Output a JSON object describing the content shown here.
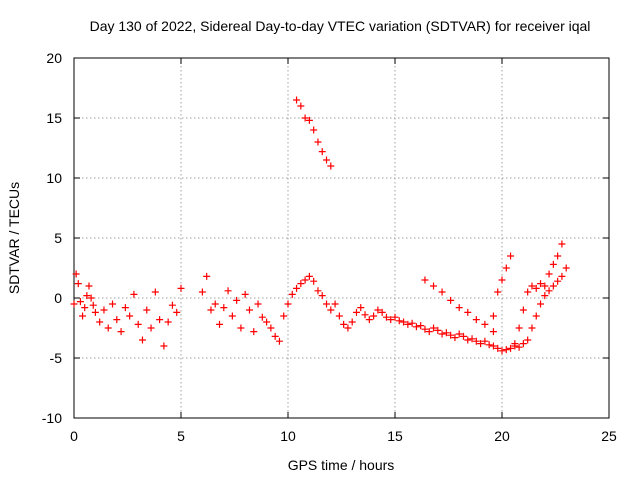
{
  "chart_data": {
    "type": "scatter",
    "title": "Day 130 of 2022, Sidereal Day-to-day VTEC variation (SDTVAR) for receiver iqal",
    "xlabel": "GPS time / hours",
    "ylabel": "SDTVAR / TECUs",
    "xlim": [
      0,
      25
    ],
    "ylim": [
      -10,
      20
    ],
    "xticks": [
      0,
      5,
      10,
      15,
      20,
      25
    ],
    "yticks": [
      -10,
      -5,
      0,
      5,
      10,
      15,
      20
    ],
    "grid": true,
    "marker": "+",
    "color": "#ff0000",
    "series": [
      {
        "name": "SDTVAR",
        "x": [
          0.0,
          0.1,
          0.2,
          0.3,
          0.4,
          0.5,
          0.6,
          0.7,
          0.8,
          0.9,
          1.0,
          1.2,
          1.4,
          1.6,
          1.8,
          2.0,
          2.2,
          2.4,
          2.6,
          2.8,
          3.0,
          3.2,
          3.4,
          3.6,
          3.8,
          4.0,
          4.2,
          4.4,
          4.6,
          4.8,
          5.0,
          6.0,
          6.2,
          6.4,
          6.6,
          6.8,
          7.0,
          7.2,
          7.4,
          7.6,
          7.8,
          8.0,
          8.2,
          8.4,
          8.6,
          8.8,
          9.0,
          9.2,
          9.4,
          9.6,
          9.8,
          10.0,
          10.2,
          10.4,
          10.6,
          10.8,
          11.0,
          11.2,
          11.4,
          11.6,
          11.8,
          12.0,
          10.4,
          10.6,
          10.8,
          11.0,
          11.2,
          11.4,
          11.6,
          11.8,
          12.0,
          12.2,
          12.4,
          12.6,
          12.8,
          13.0,
          13.2,
          13.4,
          13.6,
          13.8,
          14.0,
          14.2,
          14.4,
          14.6,
          14.8,
          15.0,
          15.2,
          15.4,
          15.6,
          15.8,
          16.0,
          16.2,
          16.4,
          16.6,
          16.8,
          17.0,
          17.2,
          17.4,
          17.6,
          17.8,
          18.0,
          18.2,
          18.4,
          18.6,
          18.8,
          19.0,
          19.2,
          19.4,
          19.6,
          19.8,
          20.0,
          20.2,
          20.4,
          20.6,
          20.8,
          21.0,
          16.4,
          16.8,
          17.2,
          17.6,
          18.0,
          18.4,
          18.8,
          19.2,
          19.6,
          19.6,
          19.8,
          20.0,
          20.2,
          20.4,
          20.6,
          20.8,
          21.0,
          21.2,
          21.4,
          21.6,
          21.8,
          22.0,
          22.2,
          22.4,
          22.6,
          22.8,
          23.0,
          21.2,
          21.4,
          21.6,
          21.8,
          22.0,
          22.2,
          22.4,
          22.6,
          22.8
        ],
        "y": [
          -0.5,
          2.0,
          1.2,
          -0.3,
          -1.5,
          -0.8,
          0.2,
          1.0,
          0.0,
          -0.6,
          -1.2,
          -2.0,
          -1.0,
          -2.5,
          -0.5,
          -1.8,
          -2.8,
          -0.8,
          -1.5,
          0.3,
          -2.2,
          -3.5,
          -1.0,
          -2.5,
          0.5,
          -1.8,
          -4.0,
          -2.0,
          -0.6,
          -1.2,
          0.8,
          0.5,
          1.8,
          -1.0,
          -0.5,
          -2.2,
          -0.8,
          0.6,
          -1.5,
          -0.2,
          -2.5,
          0.3,
          -1.0,
          -2.8,
          -0.5,
          -1.6,
          -2.0,
          -2.5,
          -3.2,
          -3.6,
          -1.5,
          -0.5,
          0.3,
          0.8,
          1.2,
          1.5,
          1.8,
          1.4,
          0.6,
          0.2,
          -0.5,
          -1.0,
          16.5,
          16.0,
          15.0,
          14.8,
          14.0,
          13.0,
          12.2,
          11.5,
          11.0,
          -0.5,
          -1.5,
          -2.2,
          -2.5,
          -2.0,
          -1.2,
          -0.8,
          -1.4,
          -1.8,
          -1.5,
          -1.0,
          -1.2,
          -1.6,
          -1.8,
          -1.6,
          -1.9,
          -2.0,
          -2.2,
          -2.1,
          -2.4,
          -2.3,
          -2.6,
          -2.8,
          -2.5,
          -2.7,
          -3.0,
          -2.9,
          -3.1,
          -3.3,
          -3.0,
          -3.2,
          -3.5,
          -3.4,
          -3.6,
          -3.8,
          -3.6,
          -3.9,
          -4.0,
          -4.2,
          -4.4,
          -4.3,
          -4.2,
          -4.0,
          -4.1,
          -3.8,
          1.5,
          1.0,
          0.5,
          -0.2,
          -0.8,
          -1.2,
          -1.8,
          -2.2,
          -2.8,
          -1.5,
          0.5,
          1.5,
          2.5,
          3.5,
          -3.8,
          -2.5,
          -1.0,
          0.5,
          1.0,
          0.8,
          1.2,
          1.0,
          2.0,
          2.8,
          3.5,
          4.5,
          2.5,
          -3.5,
          -2.5,
          -1.5,
          -0.5,
          0.2,
          0.6,
          1.0,
          1.4,
          1.8
        ]
      }
    ]
  }
}
